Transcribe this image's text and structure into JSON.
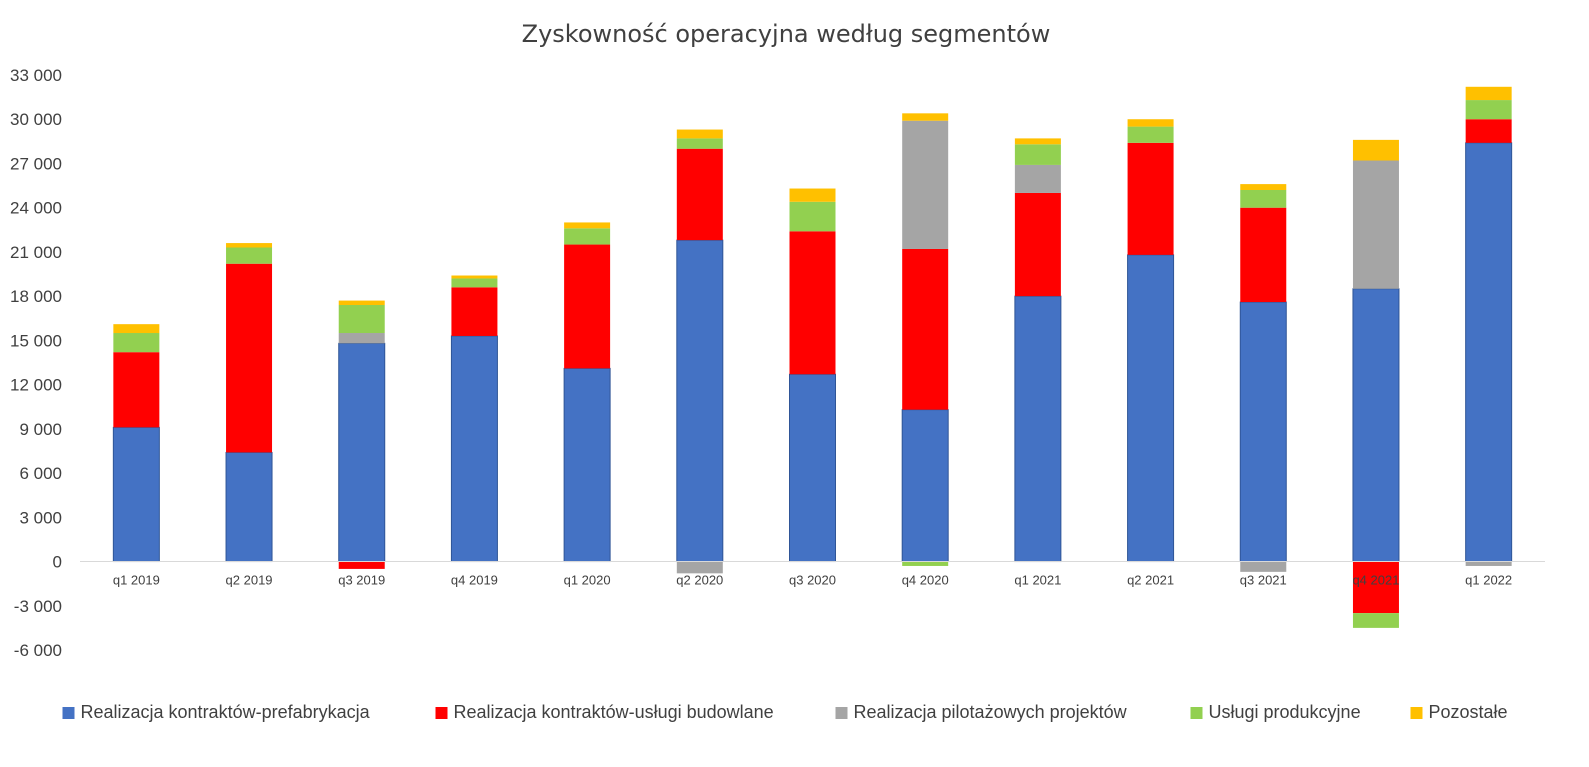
{
  "chart_data": {
    "type": "bar",
    "stacked": true,
    "title": "Zyskowność operacyjna według segmentów",
    "xlabel": "",
    "ylabel": "",
    "ylim": [
      -6000,
      33000
    ],
    "ytick_values": [
      -6000,
      -3000,
      0,
      3000,
      6000,
      9000,
      12000,
      15000,
      18000,
      21000,
      24000,
      27000,
      30000,
      33000
    ],
    "ytick_labels": [
      "-6 000",
      "-3 000",
      "0",
      "3 000",
      "6 000",
      "9 000",
      "12 000",
      "15 000",
      "18 000",
      "21 000",
      "24 000",
      "27 000",
      "30 000",
      "33 000"
    ],
    "grid": false,
    "legend_position": "bottom",
    "categories": [
      "q1 2019",
      "q2 2019",
      "q3 2019",
      "q4 2019",
      "q1 2020",
      "q2 2020",
      "q3 2020",
      "q4 2020",
      "q1 2021",
      "q2 2021",
      "q3 2021",
      "q4 2021",
      "q1 2022"
    ],
    "series": [
      {
        "name": "Realizacja kontraktów-prefabrykacja",
        "color": "#4472C4",
        "values": [
          9100,
          7400,
          14800,
          15300,
          13100,
          21800,
          12700,
          10300,
          18000,
          20800,
          17600,
          18500,
          28400
        ]
      },
      {
        "name": "Realizacja kontraktów-usługi budowlane",
        "color": "#FF0000",
        "values": [
          5100,
          12800,
          -500,
          3300,
          8400,
          6200,
          9700,
          10900,
          7000,
          7600,
          6400,
          -3500,
          1600
        ]
      },
      {
        "name": "Realizacja pilotażowych projektów",
        "color": "#A5A5A5",
        "values": [
          0,
          0,
          700,
          0,
          0,
          -800,
          0,
          8700,
          1900,
          0,
          -700,
          8700,
          -300
        ]
      },
      {
        "name": "Usługi produkcyjne",
        "color": "#92D050",
        "values": [
          1300,
          1100,
          1900,
          600,
          1100,
          700,
          2000,
          -300,
          1400,
          1100,
          1200,
          -1000,
          1300
        ]
      },
      {
        "name": "Pozostałe",
        "color": "#FFC000",
        "values": [
          600,
          300,
          300,
          200,
          400,
          600,
          900,
          500,
          400,
          500,
          400,
          1400,
          900
        ]
      }
    ]
  }
}
